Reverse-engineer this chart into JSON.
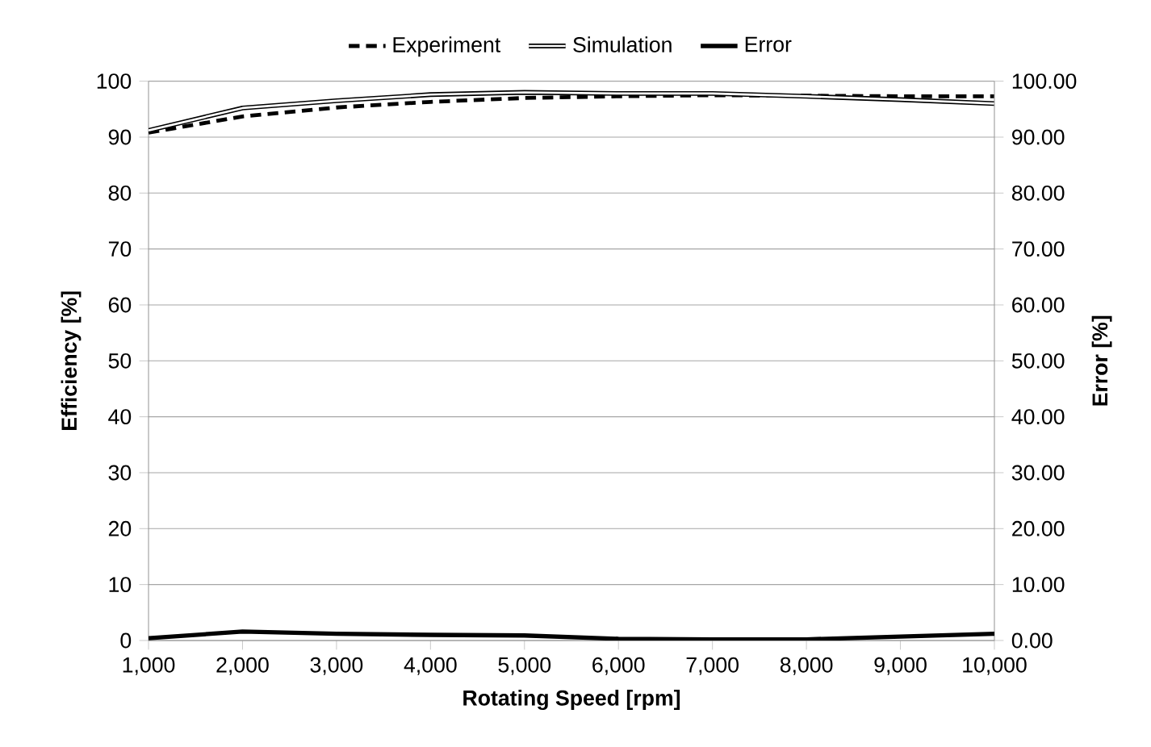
{
  "chart_data": {
    "type": "line",
    "xlabel": "Rotating Speed [rpm]",
    "ylabel": "Efficiency [%]",
    "y2label": "Error [%]",
    "x": [
      1000,
      2000,
      3000,
      4000,
      5000,
      6000,
      7000,
      8000,
      9000,
      10000
    ],
    "series": [
      {
        "name": "Experiment",
        "color": "#000000",
        "line_style": "dashed",
        "values": [
          90.8,
          93.7,
          95.3,
          96.3,
          97.0,
          97.3,
          97.5,
          97.4,
          97.3,
          97.3
        ]
      },
      {
        "name": "Simulation",
        "color": "#000000",
        "values": [
          91.2,
          95.2,
          96.5,
          97.6,
          98.0,
          97.8,
          97.8,
          97.3,
          96.7,
          96.0
        ]
      },
      {
        "name": "Error",
        "color": "#000000",
        "line_style": "solid",
        "axis": "y2",
        "values": [
          0.4,
          1.6,
          1.2,
          1.0,
          0.9,
          0.3,
          0.2,
          0.2,
          0.7,
          1.2
        ]
      }
    ],
    "xlim": [
      1000,
      10000
    ],
    "xticks": [
      {
        "value": 1000,
        "label": "1,000"
      },
      {
        "value": 2000,
        "label": "2,000"
      },
      {
        "value": 3000,
        "label": "3,000"
      },
      {
        "value": 4000,
        "label": "4,000"
      },
      {
        "value": 5000,
        "label": "5,000"
      },
      {
        "value": 6000,
        "label": "6,000"
      },
      {
        "value": 7000,
        "label": "7,000"
      },
      {
        "value": 8000,
        "label": "8,000"
      },
      {
        "value": 9000,
        "label": "9,000"
      },
      {
        "value": 10000,
        "label": "10,000"
      }
    ],
    "ylim": [
      0,
      100
    ],
    "yticks": [
      0,
      10,
      20,
      30,
      40,
      50,
      60,
      70,
      80,
      90,
      100
    ],
    "y2lim": [
      0,
      100
    ],
    "y2ticks": [
      {
        "value": 0,
        "label": "0.00"
      },
      {
        "value": 10,
        "label": "10.00"
      },
      {
        "value": 20,
        "label": "20.00"
      },
      {
        "value": 30,
        "label": "30.00"
      },
      {
        "value": 40,
        "label": "40.00"
      },
      {
        "value": 50,
        "label": "50.00"
      },
      {
        "value": 60,
        "label": "60.00"
      },
      {
        "value": 70,
        "label": "70.00"
      },
      {
        "value": 80,
        "label": "80.00"
      },
      {
        "value": 90,
        "label": "90.00"
      },
      {
        "value": 100,
        "label": "100.00"
      }
    ],
    "grid": "y",
    "legend": "top",
    "marker": "none"
  }
}
